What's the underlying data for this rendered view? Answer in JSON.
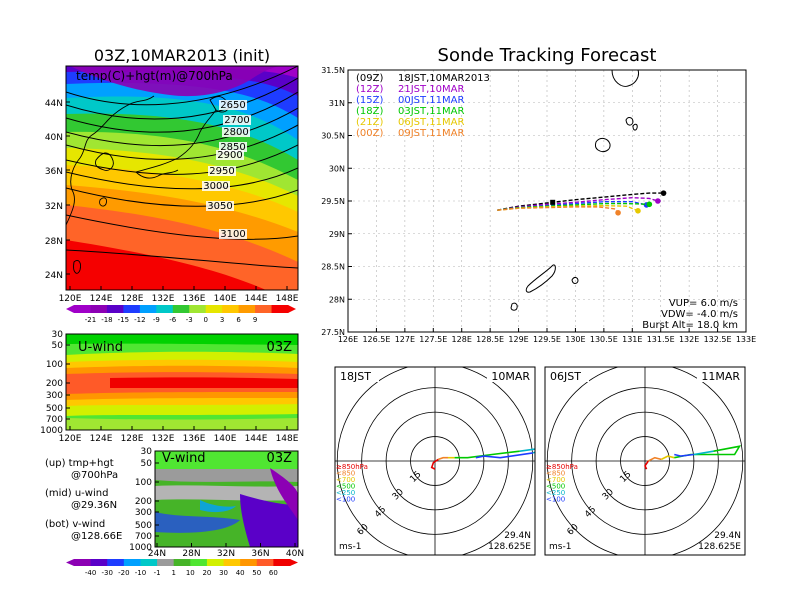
{
  "map": {
    "title": "03Z,10MAR2013 (init)",
    "label": "temp(C)+hgt(m)@700hPa",
    "lat_ticks": [
      "44N",
      "40N",
      "36N",
      "32N",
      "28N",
      "24N"
    ],
    "lon_ticks": [
      "120E",
      "124E",
      "128E",
      "132E",
      "136E",
      "140E",
      "144E",
      "148E"
    ],
    "contour_labels": [
      "2650",
      "2700",
      "2800",
      "2850",
      "2900",
      "2950",
      "3000",
      "3050",
      "3100"
    ]
  },
  "temp_colorbar": [
    "-21",
    "-18",
    "-15",
    "-12",
    "-9",
    "-6",
    "-3",
    "0",
    "3",
    "6",
    "9"
  ],
  "uwind": {
    "label": "U-wind",
    "time": "03Z",
    "p_ticks": [
      "30",
      "50",
      "100",
      "200",
      "300",
      "500",
      "700",
      "1000"
    ],
    "lon_ticks": [
      "120E",
      "124E",
      "128E",
      "132E",
      "136E",
      "140E",
      "144E",
      "148E"
    ]
  },
  "vwind": {
    "label": "V-wind",
    "time": "03Z",
    "p_ticks": [
      "30",
      "50",
      "100",
      "200",
      "300",
      "500",
      "700",
      "1000"
    ],
    "lat_ticks": [
      "24N",
      "28N",
      "32N",
      "36N",
      "40N"
    ]
  },
  "descriptions": [
    {
      "head": "(up) tmp+hgt",
      "sub": "@700hPa"
    },
    {
      "head": "(mid) u-wind",
      "sub": "@29.36N"
    },
    {
      "head": "(bot) v-wind",
      "sub": "@128.66E"
    }
  ],
  "wind_colorbar": [
    "-40",
    "-30",
    "-20",
    "-10",
    "-1",
    "1",
    "10",
    "20",
    "30",
    "40",
    "50",
    "60"
  ],
  "tracking": {
    "title": "Sonde Tracking Forecast",
    "legend": [
      {
        "code": "(09Z)",
        "text": "18JST,10MAR2013",
        "color": "#000000"
      },
      {
        "code": "(12Z)",
        "text": "21JST,10MAR",
        "color": "#a000c8"
      },
      {
        "code": "(15Z)",
        "text": "00JST,11MAR",
        "color": "#1e3cff"
      },
      {
        "code": "(18Z)",
        "text": "03JST,11MAR",
        "color": "#00c800"
      },
      {
        "code": "(21Z)",
        "text": "06JST,11MAR",
        "color": "#e6c800"
      },
      {
        "code": "(00Z)",
        "text": "09JST,11MAR",
        "color": "#f08228"
      }
    ],
    "lat_ticks": [
      "31.5N",
      "31N",
      "30.5N",
      "30N",
      "29.5N",
      "29N",
      "28.5N",
      "28N",
      "27.5N"
    ],
    "lon_ticks": [
      "126E",
      "126.5E",
      "127E",
      "127.5E",
      "128E",
      "128.5E",
      "129E",
      "129.5E",
      "130E",
      "130.5E",
      "131E",
      "131.5E",
      "132E",
      "132.5E",
      "133E"
    ],
    "params": [
      "VUP= 6.0 m/s",
      "VDW= -4.0 m/s",
      "Burst Alt= 18.0 km"
    ]
  },
  "hodographs": [
    {
      "time": "18JST",
      "date": "10MAR",
      "lat": "29.4N",
      "lon": "128.625E",
      "unit": "ms-1"
    },
    {
      "time": "06JST",
      "date": "11MAR",
      "lat": "29.4N",
      "lon": "128.625E",
      "unit": "ms-1"
    }
  ],
  "hodo_rings": [
    "15",
    "30",
    "45",
    "60"
  ],
  "hodo_legend": [
    {
      "text": "≥850hPa",
      "color": "#e60000"
    },
    {
      "text": "<850",
      "color": "#f08228"
    },
    {
      "text": "<700",
      "color": "#e6c800"
    },
    {
      "text": "<500",
      "color": "#00c800"
    },
    {
      "text": "<250",
      "color": "#00b4c8"
    },
    {
      "text": "<100",
      "color": "#1e3cff"
    }
  ],
  "chart_data": [
    {
      "type": "line",
      "title": "Sonde Tracking Forecast",
      "xlabel": "",
      "ylabel": "",
      "xlim": [
        126,
        133
      ],
      "ylim": [
        27.5,
        31.5
      ],
      "grid": true,
      "legend": "top-left",
      "series": [
        {
          "name": "(09Z) 18JST,10MAR2013",
          "color": "#000000",
          "x": [
            128.625,
            129.0,
            129.5,
            130.0,
            130.5,
            131.0,
            131.3,
            131.55
          ],
          "y": [
            29.36,
            29.42,
            29.47,
            29.52,
            29.56,
            29.6,
            29.62,
            29.62
          ]
        },
        {
          "name": "(12Z) 21JST,10MAR",
          "color": "#a000c8",
          "x": [
            128.625,
            129.0,
            129.5,
            130.0,
            130.5,
            131.0,
            131.3,
            131.45
          ],
          "y": [
            29.36,
            29.41,
            29.45,
            29.48,
            29.52,
            29.55,
            29.54,
            29.5
          ]
        },
        {
          "name": "(15Z) 00JST,11MAR",
          "color": "#1e3cff",
          "x": [
            128.625,
            129.0,
            129.5,
            130.0,
            130.5,
            131.0,
            131.25
          ],
          "y": [
            29.36,
            29.4,
            29.43,
            29.46,
            29.49,
            29.49,
            29.44
          ]
        },
        {
          "name": "(18Z) 03JST,11MAR",
          "color": "#00c800",
          "x": [
            128.625,
            129.0,
            129.5,
            130.0,
            130.5,
            130.9,
            131.3
          ],
          "y": [
            29.36,
            29.4,
            29.42,
            29.44,
            29.46,
            29.46,
            29.45
          ]
        },
        {
          "name": "(21Z) 06JST,11MAR",
          "color": "#e6c800",
          "x": [
            128.625,
            129.0,
            129.5,
            130.0,
            130.5,
            130.9,
            131.1
          ],
          "y": [
            29.36,
            29.39,
            29.41,
            29.42,
            29.43,
            29.42,
            29.35
          ]
        },
        {
          "name": "(00Z) 09JST,11MAR",
          "color": "#f08228",
          "x": [
            128.625,
            129.0,
            129.5,
            130.0,
            130.4,
            130.7,
            130.75
          ],
          "y": [
            29.36,
            29.39,
            29.4,
            29.41,
            29.41,
            29.38,
            29.32
          ]
        }
      ]
    },
    {
      "type": "line",
      "title": "18JST 10MAR",
      "rings": [
        15,
        30,
        45,
        60
      ],
      "series": [
        {
          "name": "≥850hPa",
          "color": "#e60000",
          "u": [
            0,
            -2,
            -1,
            2
          ],
          "v": [
            -5,
            -4,
            -1,
            1
          ]
        },
        {
          "name": "<850",
          "color": "#f08228",
          "u": [
            2,
            5,
            8
          ],
          "v": [
            1,
            2,
            2
          ]
        },
        {
          "name": "<700",
          "color": "#e6c800",
          "u": [
            8,
            12
          ],
          "v": [
            2,
            2
          ]
        },
        {
          "name": "<500",
          "color": "#00c800",
          "u": [
            12,
            20,
            35,
            52
          ],
          "v": [
            2,
            2,
            4,
            6
          ]
        },
        {
          "name": "<250",
          "color": "#00b4c8",
          "u": [
            52,
            80,
            60
          ],
          "v": [
            6,
            10,
            5
          ]
        },
        {
          "name": "<100",
          "color": "#1e3cff",
          "u": [
            60,
            40,
            30,
            25
          ],
          "v": [
            5,
            2,
            3,
            2
          ]
        }
      ]
    },
    {
      "type": "line",
      "title": "06JST 11MAR",
      "rings": [
        15,
        30,
        45,
        60
      ],
      "series": [
        {
          "name": "≥850hPa",
          "color": "#e60000",
          "u": [
            1,
            0,
            2
          ],
          "v": [
            -5,
            -3,
            0
          ]
        },
        {
          "name": "<850",
          "color": "#f08228",
          "u": [
            2,
            6,
            10
          ],
          "v": [
            0,
            2,
            1
          ]
        },
        {
          "name": "<700",
          "color": "#e6c800",
          "u": [
            10,
            14,
            18
          ],
          "v": [
            1,
            3,
            2
          ]
        },
        {
          "name": "<500",
          "color": "#00c800",
          "u": [
            18,
            28,
            40,
            55,
            58,
            42
          ],
          "v": [
            2,
            4,
            4,
            4,
            9,
            6
          ]
        },
        {
          "name": "<250",
          "color": "#00b4c8",
          "u": [
            42,
            30
          ],
          "v": [
            6,
            4
          ]
        },
        {
          "name": "<100",
          "color": "#1e3cff",
          "u": [
            30,
            22,
            18
          ],
          "v": [
            4,
            3,
            4
          ]
        }
      ]
    }
  ]
}
